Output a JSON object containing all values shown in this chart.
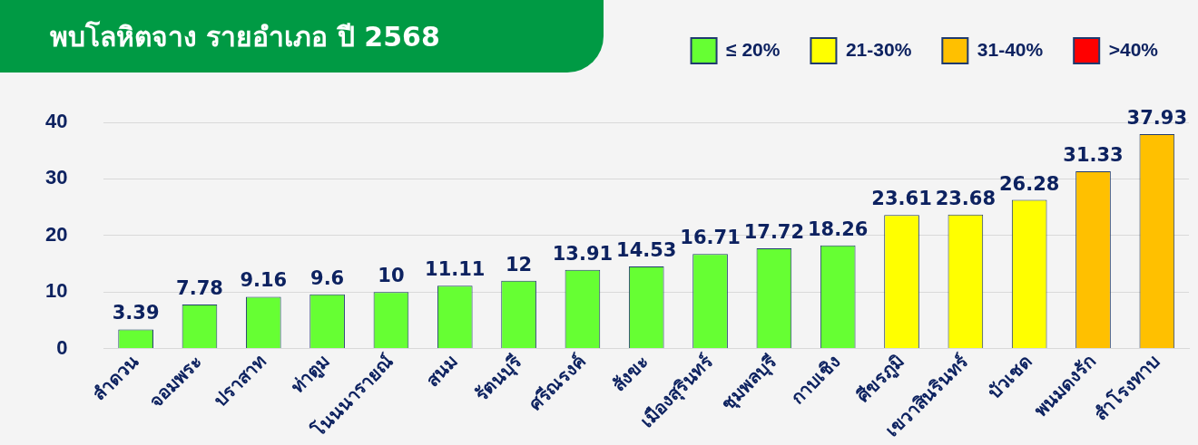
{
  "chart_data": {
    "type": "bar",
    "title": "พบโลหิตจาง รายอำเภอ ปี 2568",
    "data_labels": true,
    "grid": "y",
    "legend": "top right",
    "categories": [
      "ลำดวน",
      "จอมพระ",
      "ปราสาท",
      "ท่าตูม",
      "โนนนารายณ์",
      "สนม",
      "รัตนบุรี",
      "ศรีณรงค์",
      "สังขะ",
      "เมืองสุรินทร์",
      "ชุมพลบุรี",
      "กาบเชิง",
      "ศีขรภูมิ",
      "เขวาสินรินทร์",
      "บัวเชด",
      "พนมดงรัก",
      "สำโรงทาบ"
    ],
    "ylim": [
      0,
      40
    ],
    "yticks": [
      0,
      10,
      20,
      30,
      40
    ],
    "series": [
      {
        "name": "≤ 20%",
        "color": "#66ff33",
        "values": [
          3.39,
          7.78,
          9.16,
          9.6,
          10,
          11.11,
          12,
          13.91,
          14.53,
          16.71,
          17.72,
          18.26,
          null,
          null,
          null,
          null,
          null
        ]
      },
      {
        "name": "21-30%",
        "color": "#ffff00",
        "values": [
          null,
          null,
          null,
          null,
          null,
          null,
          null,
          null,
          null,
          null,
          null,
          null,
          23.61,
          23.68,
          26.28,
          null,
          null
        ]
      },
      {
        "name": "31-40%",
        "color": "#ffc000",
        "values": [
          null,
          null,
          null,
          null,
          null,
          null,
          null,
          null,
          null,
          null,
          null,
          null,
          null,
          null,
          null,
          31.33,
          37.93
        ]
      },
      {
        "name": ">40%",
        "color": "#ff0000",
        "values": [
          null,
          null,
          null,
          null,
          null,
          null,
          null,
          null,
          null,
          null,
          null,
          null,
          null,
          null,
          null,
          null,
          null
        ]
      }
    ]
  }
}
